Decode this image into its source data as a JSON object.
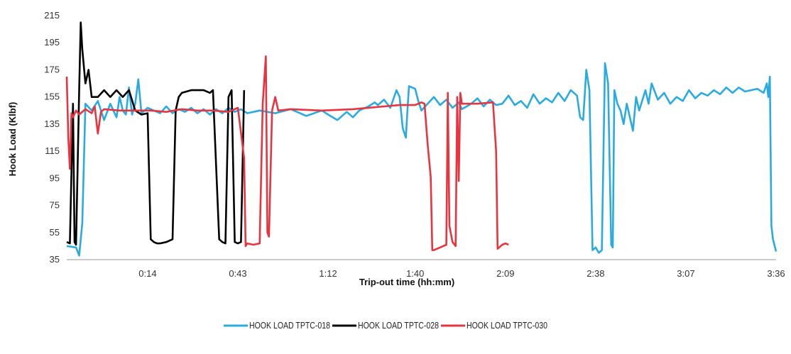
{
  "chart_data": {
    "type": "line",
    "xlabel": "Trip-out time (hh:mm)",
    "ylabel": "Hook Load (Klbf)",
    "ylim": [
      35,
      215
    ],
    "xlim_minutes": [
      -12,
      216
    ],
    "y_ticks": [
      "35",
      "55",
      "75",
      "95",
      "115",
      "135",
      "155",
      "175",
      "195",
      "215"
    ],
    "x_ticks": [
      {
        "label": "0:14",
        "minutes": 14
      },
      {
        "label": "0:43",
        "minutes": 43
      },
      {
        "label": "1:12",
        "minutes": 72
      },
      {
        "label": "1:40",
        "minutes": 100
      },
      {
        "label": "2:09",
        "minutes": 129
      },
      {
        "label": "2:38",
        "minutes": 158
      },
      {
        "label": "3:07",
        "minutes": 187
      },
      {
        "label": "3:36",
        "minutes": 216
      }
    ],
    "grid": false,
    "legend_position": "bottom",
    "series": [
      {
        "name": "HOOK LOAD TPTC-018",
        "color": "#29abe2",
        "points": [
          [
            -12,
            45
          ],
          [
            -9,
            44
          ],
          [
            -8,
            38
          ],
          [
            -7,
            62
          ],
          [
            -6,
            150
          ],
          [
            -4,
            145
          ],
          [
            -2,
            152
          ],
          [
            0,
            138
          ],
          [
            2,
            150
          ],
          [
            4,
            140
          ],
          [
            5,
            155
          ],
          [
            6,
            145
          ],
          [
            7,
            142
          ],
          [
            8,
            162
          ],
          [
            9,
            142
          ],
          [
            10,
            150
          ],
          [
            11,
            168
          ],
          [
            12,
            143
          ],
          [
            14,
            147
          ],
          [
            16,
            145
          ],
          [
            18,
            143
          ],
          [
            20,
            148
          ],
          [
            22,
            143
          ],
          [
            24,
            146
          ],
          [
            26,
            144
          ],
          [
            28,
            147
          ],
          [
            30,
            143
          ],
          [
            32,
            146
          ],
          [
            34,
            142
          ],
          [
            36,
            146
          ],
          [
            38,
            143
          ],
          [
            40,
            147
          ],
          [
            42,
            144
          ],
          [
            44,
            146
          ],
          [
            46,
            143
          ],
          [
            50,
            145
          ],
          [
            55,
            143
          ],
          [
            60,
            146
          ],
          [
            65,
            141
          ],
          [
            70,
            145
          ],
          [
            72,
            142
          ],
          [
            75,
            138
          ],
          [
            78,
            144
          ],
          [
            80,
            140
          ],
          [
            82,
            145
          ],
          [
            85,
            148
          ],
          [
            87,
            151
          ],
          [
            88,
            149
          ],
          [
            90,
            153
          ],
          [
            92,
            147
          ],
          [
            94,
            160
          ],
          [
            95,
            155
          ],
          [
            96,
            132
          ],
          [
            97,
            125
          ],
          [
            97.5,
            145
          ],
          [
            98,
            163
          ],
          [
            100,
            161
          ],
          [
            101,
            152
          ],
          [
            102,
            145
          ],
          [
            104,
            150
          ],
          [
            106,
            155
          ],
          [
            108,
            149
          ],
          [
            110,
            153
          ],
          [
            112,
            147
          ],
          [
            114,
            151
          ],
          [
            115,
            146
          ],
          [
            118,
            150
          ],
          [
            120,
            154
          ],
          [
            122,
            148
          ],
          [
            124,
            153
          ],
          [
            126,
            149
          ],
          [
            128,
            150
          ],
          [
            130,
            156
          ],
          [
            132,
            149
          ],
          [
            134,
            152
          ],
          [
            136,
            147
          ],
          [
            138,
            157
          ],
          [
            140,
            150
          ],
          [
            142,
            154
          ],
          [
            144,
            151
          ],
          [
            146,
            158
          ],
          [
            148,
            152
          ],
          [
            150,
            160
          ],
          [
            152,
            156
          ],
          [
            153,
            140
          ],
          [
            154,
            138
          ],
          [
            155,
            175
          ],
          [
            156,
            160
          ],
          [
            157,
            42
          ],
          [
            158,
            44
          ],
          [
            159,
            40
          ],
          [
            160,
            42
          ],
          [
            161,
            180
          ],
          [
            162,
            165
          ],
          [
            163,
            46
          ],
          [
            163.5,
            44
          ],
          [
            164,
            160
          ],
          [
            165,
            150
          ],
          [
            166,
            145
          ],
          [
            167,
            135
          ],
          [
            168,
            150
          ],
          [
            170,
            130
          ],
          [
            171,
            155
          ],
          [
            172,
            145
          ],
          [
            174,
            160
          ],
          [
            175,
            150
          ],
          [
            176,
            165
          ],
          [
            178,
            153
          ],
          [
            180,
            158
          ],
          [
            182,
            150
          ],
          [
            184,
            155
          ],
          [
            186,
            152
          ],
          [
            188,
            160
          ],
          [
            190,
            154
          ],
          [
            192,
            158
          ],
          [
            194,
            156
          ],
          [
            196,
            160
          ],
          [
            198,
            157
          ],
          [
            200,
            162
          ],
          [
            202,
            158
          ],
          [
            204,
            162
          ],
          [
            206,
            159
          ],
          [
            208,
            160
          ],
          [
            210,
            161
          ],
          [
            212,
            158
          ],
          [
            213,
            165
          ],
          [
            213.5,
            155
          ],
          [
            214,
            170
          ],
          [
            214.5,
            60
          ],
          [
            215,
            50
          ],
          [
            216,
            41
          ]
        ]
      },
      {
        "name": "HOOK LOAD TPTC-028",
        "color": "#000000",
        "points": [
          [
            -12,
            48
          ],
          [
            -11,
            47
          ],
          [
            -10,
            150
          ],
          [
            -9.5,
            48
          ],
          [
            -9,
            46
          ],
          [
            -8,
            160
          ],
          [
            -7.5,
            210
          ],
          [
            -7,
            190
          ],
          [
            -6,
            165
          ],
          [
            -5,
            175
          ],
          [
            -4,
            155
          ],
          [
            -2,
            155
          ],
          [
            0,
            160
          ],
          [
            2,
            155
          ],
          [
            4,
            160
          ],
          [
            6,
            155
          ],
          [
            8,
            160
          ],
          [
            10,
            145
          ],
          [
            12,
            142
          ],
          [
            14,
            143
          ],
          [
            15,
            50
          ],
          [
            16,
            48
          ],
          [
            17,
            47
          ],
          [
            18,
            47
          ],
          [
            20,
            48
          ],
          [
            22,
            50
          ],
          [
            23,
            145
          ],
          [
            24,
            155
          ],
          [
            25,
            158
          ],
          [
            28,
            160
          ],
          [
            32,
            160
          ],
          [
            34,
            158
          ],
          [
            35,
            160
          ],
          [
            37,
            50
          ],
          [
            38,
            48
          ],
          [
            39,
            47
          ],
          [
            40,
            155
          ],
          [
            41,
            160
          ],
          [
            42,
            48
          ],
          [
            43,
            47
          ],
          [
            44,
            48
          ],
          [
            45,
            160
          ]
        ]
      },
      {
        "name": "HOOK LOAD TPTC-030",
        "color": "#e8343f",
        "points": [
          [
            -12,
            170
          ],
          [
            -11.5,
            125
          ],
          [
            -11,
            102
          ],
          [
            -10.5,
            143
          ],
          [
            -10,
            140
          ],
          [
            -9,
            145
          ],
          [
            -8,
            142
          ],
          [
            -6,
            146
          ],
          [
            -4,
            143
          ],
          [
            -3,
            148
          ],
          [
            -2,
            128
          ],
          [
            -1,
            144
          ],
          [
            0,
            146
          ],
          [
            5,
            145
          ],
          [
            10,
            145
          ],
          [
            15,
            145
          ],
          [
            20,
            144
          ],
          [
            25,
            146
          ],
          [
            30,
            145
          ],
          [
            35,
            145
          ],
          [
            40,
            144
          ],
          [
            43,
            147
          ],
          [
            45,
            110
          ],
          [
            45.5,
            45
          ],
          [
            46,
            47
          ],
          [
            48,
            46
          ],
          [
            50,
            47
          ],
          [
            51,
            150
          ],
          [
            52,
            185
          ],
          [
            52.5,
            55
          ],
          [
            53,
            52
          ],
          [
            54,
            145
          ],
          [
            55,
            155
          ],
          [
            56,
            145
          ],
          [
            60,
            146
          ],
          [
            70,
            145
          ],
          [
            80,
            146
          ],
          [
            90,
            148
          ],
          [
            95,
            149
          ],
          [
            100,
            149
          ],
          [
            102,
            151
          ],
          [
            103,
            150
          ],
          [
            104,
            120
          ],
          [
            105,
            96
          ],
          [
            105.5,
            42
          ],
          [
            106,
            42
          ],
          [
            108,
            44
          ],
          [
            110,
            46
          ],
          [
            110.5,
            158
          ],
          [
            111,
            60
          ],
          [
            112,
            48
          ],
          [
            113,
            45
          ],
          [
            113.5,
            155
          ],
          [
            114,
            93
          ],
          [
            114.5,
            158
          ],
          [
            115,
            150
          ],
          [
            120,
            150
          ],
          [
            125,
            151
          ],
          [
            126,
            115
          ],
          [
            126.5,
            43
          ],
          [
            127,
            44
          ],
          [
            128,
            46
          ],
          [
            129,
            47
          ],
          [
            130,
            46
          ]
        ]
      }
    ]
  }
}
